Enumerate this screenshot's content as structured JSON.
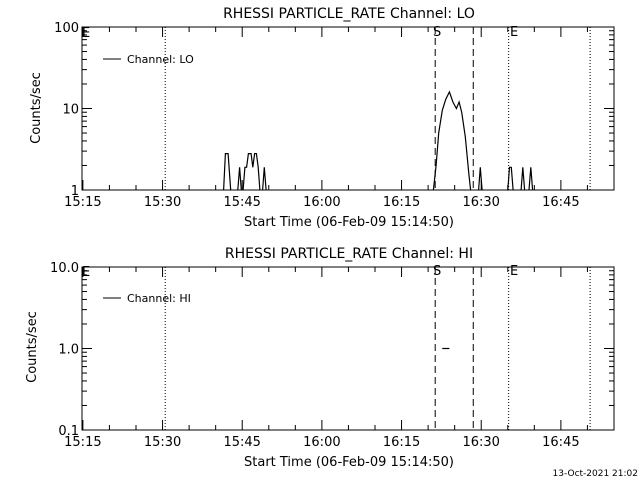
{
  "chart_data": [
    {
      "type": "line",
      "title": "RHESSI PARTICLE_RATE Channel: LO",
      "xlabel": "Start Time (06-Feb-09 15:14:50)",
      "ylabel": "Counts/sec",
      "yscale": "log",
      "xlim": [
        "15:14:50",
        "16:55:00"
      ],
      "ylim": [
        1,
        100
      ],
      "x_ticks": [
        "15:15",
        "15:30",
        "15:45",
        "16:00",
        "16:15",
        "16:30",
        "16:45"
      ],
      "y_ticks": [
        "1",
        "10",
        "100"
      ],
      "legend": {
        "position": "top-left",
        "label": "Channel: LO"
      },
      "marker_labels": {
        "start": "S",
        "end": "E",
        "left_edge": "E"
      },
      "vlines": {
        "dotted": [
          "15:30:30",
          "16:35:10",
          "16:50:30"
        ],
        "dashed": [
          "16:21:20",
          "16:28:30"
        ]
      },
      "series": [
        {
          "name": "Channel: LO",
          "segments": [
            [
              [
                "15:41:30",
                1
              ],
              [
                "15:41:50",
                2.8
              ],
              [
                "15:42:20",
                2.8
              ],
              [
                "15:42:50",
                1
              ]
            ],
            [
              [
                "15:44:10",
                1
              ],
              [
                "15:44:30",
                1.9
              ],
              [
                "15:44:50",
                1
              ]
            ],
            [
              [
                "15:45:10",
                1
              ],
              [
                "15:45:30",
                1.9
              ],
              [
                "15:45:50",
                1.9
              ],
              [
                "15:46:10",
                2.8
              ],
              [
                "15:46:40",
                2.8
              ],
              [
                "15:47:00",
                1.9
              ],
              [
                "15:47:20",
                2.8
              ],
              [
                "15:47:40",
                2.8
              ],
              [
                "15:48:00",
                1.9
              ],
              [
                "15:48:20",
                1
              ]
            ],
            [
              [
                "15:48:50",
                1
              ],
              [
                "15:49:10",
                1.9
              ],
              [
                "15:49:30",
                1
              ]
            ],
            [
              [
                "16:21:00",
                1
              ],
              [
                "16:21:30",
                2
              ],
              [
                "16:22:00",
                5
              ],
              [
                "16:22:40",
                9.5
              ],
              [
                "16:23:20",
                13
              ],
              [
                "16:24:00",
                16
              ],
              [
                "16:24:40",
                12
              ],
              [
                "16:25:20",
                10
              ],
              [
                "16:25:50",
                12
              ],
              [
                "16:26:20",
                9
              ],
              [
                "16:27:00",
                4.5
              ],
              [
                "16:27:40",
                1.6
              ],
              [
                "16:28:00",
                1
              ]
            ],
            [
              [
                "16:29:30",
                1
              ],
              [
                "16:29:50",
                1.9
              ],
              [
                "16:30:10",
                1
              ]
            ],
            [
              [
                "16:35:00",
                1
              ],
              [
                "16:35:20",
                1.9
              ],
              [
                "16:35:40",
                1.9
              ],
              [
                "16:36:00",
                1
              ]
            ],
            [
              [
                "16:37:30",
                1
              ],
              [
                "16:37:50",
                1.9
              ],
              [
                "16:38:10",
                1
              ]
            ],
            [
              [
                "16:39:00",
                1
              ],
              [
                "16:39:20",
                1.9
              ],
              [
                "16:39:40",
                1
              ]
            ]
          ]
        }
      ]
    },
    {
      "type": "line",
      "title": "RHESSI PARTICLE_RATE Channel: HI",
      "xlabel": "Start Time (06-Feb-09 15:14:50)",
      "ylabel": "Counts/sec",
      "yscale": "log",
      "xlim": [
        "15:14:50",
        "16:55:00"
      ],
      "ylim": [
        0.1,
        10
      ],
      "x_ticks": [
        "15:15",
        "15:30",
        "15:45",
        "16:00",
        "16:15",
        "16:30",
        "16:45"
      ],
      "y_ticks": [
        "0.1",
        "1.0",
        "10.0"
      ],
      "legend": {
        "position": "top-left",
        "label": "Channel: HI"
      },
      "marker_labels": {
        "start": "S",
        "end": "E",
        "left_edge": "E"
      },
      "vlines": {
        "dotted": [
          "15:30:30",
          "16:35:10",
          "16:50:30"
        ],
        "dashed": [
          "16:21:20",
          "16:28:30"
        ]
      },
      "series": [
        {
          "name": "Channel: HI",
          "segments": [
            [
              [
                "16:22:40",
                1.0
              ],
              [
                "16:24:00",
                1.0
              ]
            ]
          ]
        }
      ]
    }
  ],
  "footer": {
    "timestamp": "13-Oct-2021 21:02"
  }
}
